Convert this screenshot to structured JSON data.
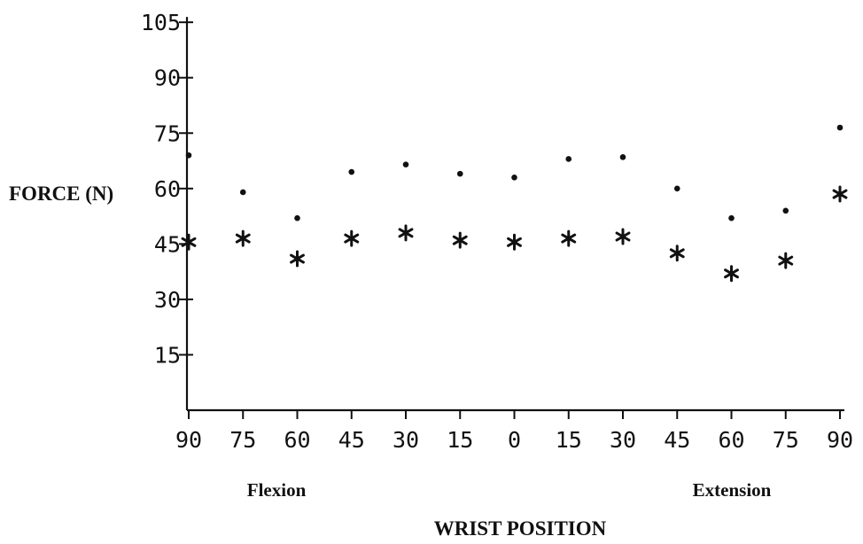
{
  "chart_data": {
    "type": "scatter",
    "title": "",
    "ylabel": "FORCE (N)",
    "xlabel": "WRIST POSITION",
    "ylim": [
      0,
      105
    ],
    "yticks": [
      15,
      30,
      45,
      60,
      75,
      90,
      105
    ],
    "categories": [
      "90",
      "75",
      "60",
      "45",
      "30",
      "15",
      "0",
      "15",
      "30",
      "45",
      "60",
      "75",
      "90"
    ],
    "group_labels": {
      "left": "Flexion",
      "right": "Extension"
    },
    "grid": false,
    "legend": "none",
    "series": [
      {
        "marker": "dot",
        "values": [
          69,
          59,
          52,
          64.5,
          66.5,
          64,
          63,
          68,
          68.5,
          60,
          52,
          54,
          76.5
        ]
      },
      {
        "marker": "asterisk",
        "values": [
          45.5,
          46.5,
          41,
          46.5,
          48,
          46,
          45.5,
          46.5,
          47,
          42.5,
          37,
          40.5,
          58.5
        ]
      }
    ]
  }
}
